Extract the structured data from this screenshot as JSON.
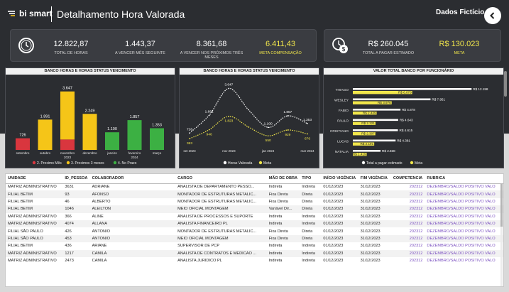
{
  "header": {
    "brand": "bi smart",
    "title": "Detalhamento Hora Valorada",
    "company": "Dados Fictício",
    "back_icon": "chevron-left-icon"
  },
  "kpis": [
    {
      "value": "12.822,87",
      "label": "TOTAL DE HORAS",
      "highlight": false
    },
    {
      "value": "1.443,37",
      "label": "A VENCER MÊS SEGUINTE",
      "highlight": false
    },
    {
      "value": "8.361,68",
      "label": "A VENCER NOS PRÓXIMOS TRÊS MESES",
      "highlight": false
    },
    {
      "value": "6.411,43",
      "label": "META COMPENSAÇÃO",
      "highlight": true
    }
  ],
  "kpis_money": [
    {
      "value": "R$ 260.045",
      "label": "TOTAL A PAGAR ESTIMADO",
      "highlight": false
    },
    {
      "value": "R$ 130.023",
      "label": "META",
      "highlight": true
    }
  ],
  "colors": {
    "red": "#d9363e",
    "yellow": "#f5c518",
    "green": "#3cb043",
    "meta_yellow": "#f1e64b",
    "white": "#ffffff"
  },
  "chart_data": [
    {
      "type": "bar",
      "title": "BANCO HORAS E HORAS STATUS VENCIMENTO",
      "categories": [
        "setembro",
        "outubro",
        "novembro 2023",
        "dezembro",
        "janeiro",
        "fevereiro 2024",
        "março"
      ],
      "category_lines": [
        [
          "setembro"
        ],
        [
          "outubro"
        ],
        [
          "novembro",
          "2023"
        ],
        [
          "dezembro"
        ],
        [
          "janeiro"
        ],
        [
          "fevereiro",
          "2024"
        ],
        [
          "março"
        ]
      ],
      "series": [
        {
          "name": "2. Proximo Mês",
          "color": "#d9363e",
          "values": [
            726,
            0,
            650,
            0,
            0,
            0,
            0
          ]
        },
        {
          "name": "3. Proximos 3 meses",
          "color": "#f5c518",
          "values": [
            0,
            1891,
            2997,
            2249,
            0,
            0,
            0
          ]
        },
        {
          "name": "4. No Prazo",
          "color": "#3cb043",
          "values": [
            0,
            0,
            0,
            0,
            1100,
            1857,
            1353
          ]
        }
      ],
      "totals": [
        "726",
        "1.891",
        "3.647",
        "2.249",
        "1.100",
        "1.857",
        "1.353"
      ],
      "ylim": [
        0,
        3900
      ],
      "legend": "bottom"
    },
    {
      "type": "line",
      "title": "BANCO HORAS E HORAS STATUS VENCIMENTO",
      "x": [
        0,
        1,
        2,
        3,
        4,
        5,
        6
      ],
      "xtick_labels": [
        "set 2023",
        "nov 2023",
        "jan 2024",
        "mar 2024"
      ],
      "series": [
        {
          "name": "Horas Valorada",
          "color": "#ffffff",
          "values": [
            726,
            1891,
            3647,
            2249,
            1100,
            1857,
            1353
          ],
          "labels": [
            "726",
            "1.891",
            "3.647",
            "",
            "1.100",
            "1.857",
            "1.353"
          ]
        },
        {
          "name": "Meta",
          "color": "#f1e64b",
          "values": [
            363,
            946,
            1823,
            1125,
            550,
            929,
            676
          ],
          "labels": [
            "363",
            "946",
            "1.823",
            "",
            "550",
            "929",
            "676"
          ]
        }
      ],
      "ylim": [
        0,
        3900
      ],
      "legend": "bottom"
    },
    {
      "type": "bar",
      "orientation": "horizontal",
      "title": "VALOR TOTAL BANCO POR FUNCIONÁRIO",
      "categories": [
        "THIAGO",
        "WESLEY",
        "FABIO",
        "PAULO",
        "CRISTIANO",
        "LUCAS",
        "NATALIA"
      ],
      "series": [
        {
          "name": "Total a pagar estimado",
          "color": "#ffffff",
          "values": [
            12158,
            7951,
            4878,
            4643,
            4615,
            4381,
            2838
          ],
          "labels": [
            "R$ 12.158",
            "R$ 7.951",
            "R$ 4.878",
            "R$ 4.643",
            "R$ 4.615",
            "R$ 4.381",
            "R$ 2.838"
          ]
        },
        {
          "name": "Meta",
          "color": "#f1e64b",
          "values": [
            6079,
            3976,
            2439,
            2321,
            2307,
            2191,
            1419
          ],
          "labels": [
            "R$ 6.079",
            "R$ 3.976",
            "R$ 2.439",
            "R$ 2.321",
            "R$ 2.307",
            "R$ 2.191",
            "R$ 1.419"
          ]
        }
      ],
      "xlim": [
        0,
        12500
      ],
      "legend": "bottom"
    }
  ],
  "table": {
    "columns": [
      "UNIDADE",
      "ID_PESSOA",
      "COLABORADOR",
      "CARGO",
      "MÃO DE OBRA",
      "TIPO",
      "INÍCIO VIGÊNCIA",
      "FIM VIGÊNCIA",
      "COMPETENCIA",
      "RUBRICA"
    ],
    "rows": [
      [
        "MATRIZ ADMINISTRATIVO",
        "3631",
        "ADRIANE",
        "ANALISTA DE DEPARTAMENTO PESSO...",
        "Indireta",
        "Indireta",
        "01/12/2023",
        "31/12/2023",
        "202312",
        "DEZEMBRO/SALDO POSITIVO VALO"
      ],
      [
        "FILIAL BETIM",
        "93",
        "AFONSO",
        "MONTADOR DE ESTRUTURAS METALIC...",
        "Fixa Direta",
        "Direta",
        "01/12/2023",
        "31/12/2023",
        "202312",
        "DEZEMBRO/SALDO POSITIVO VALO"
      ],
      [
        "FILIAL BETIM",
        "46",
        "ALBERTO",
        "MONTADOR DE ESTRUTURAS METALIC...",
        "Fixa Direta",
        "Direta",
        "01/12/2023",
        "31/12/2023",
        "202312",
        "DEZEMBRO/SALDO POSITIVO VALO"
      ],
      [
        "FILIAL BETIM",
        "1046",
        "ALEILTON",
        "MEIO OFICIAL MONTAGEM",
        "Variável Dir...",
        "Direta",
        "01/12/2023",
        "31/12/2023",
        "202312",
        "DEZEMBRO/SALDO POSITIVO VALO"
      ],
      [
        "MATRIZ ADMINISTRATIVO",
        "366",
        "ALINE",
        "ANALISTA DE PROCESSOS E SUPORTE",
        "Indireta",
        "Indireta",
        "01/12/2023",
        "31/12/2023",
        "202312",
        "DEZEMBRO/SALDO POSITIVO VALO"
      ],
      [
        "MATRIZ ADMINISTRATIVO",
        "4074",
        "ALLANA",
        "ANALISTA FINANCEIRO PL",
        "Indireta",
        "Indireta",
        "01/12/2023",
        "31/12/2023",
        "202312",
        "DEZEMBRO/SALDO POSITIVO VALO"
      ],
      [
        "FILIAL SÃO PAULO",
        "426",
        "ANTONIO",
        "MONTADOR DE ESTRUTURAS METALIC...",
        "Fixa Direta",
        "Direta",
        "01/12/2023",
        "31/12/2023",
        "202312",
        "DEZEMBRO/SALDO POSITIVO VALO"
      ],
      [
        "FILIAL SÃO PAULO",
        "453",
        "ANTONIO",
        "MEIO OFICIAL MONTAGEM",
        "Fixa Direta",
        "Direta",
        "01/12/2023",
        "31/12/2023",
        "202312",
        "DEZEMBRO/SALDO POSITIVO VALO"
      ],
      [
        "FILIAL BETIM",
        "436",
        "ARIANE",
        "SUPERVISOR DE PCP",
        "Indireta",
        "Indireta",
        "01/12/2023",
        "31/12/2023",
        "202312",
        "DEZEMBRO/SALDO POSITIVO VALO"
      ],
      [
        "MATRIZ ADMINISTRATIVO",
        "1217",
        "CAMILA",
        "ANALISTA DE CONTRATOS E MEDICAO ...",
        "Indireta",
        "Indireta",
        "01/12/2023",
        "31/12/2023",
        "202312",
        "DEZEMBRO/SALDO POSITIVO VALO"
      ],
      [
        "MATRIZ ADMINISTRATIVO",
        "2473",
        "CAMILA",
        "ANALISTA JURIDICO PL",
        "Indireta",
        "Indireta",
        "01/12/2023",
        "31/12/2023",
        "202312",
        "DEZEMBRO/SALDO POSITIVO VALO"
      ]
    ]
  }
}
